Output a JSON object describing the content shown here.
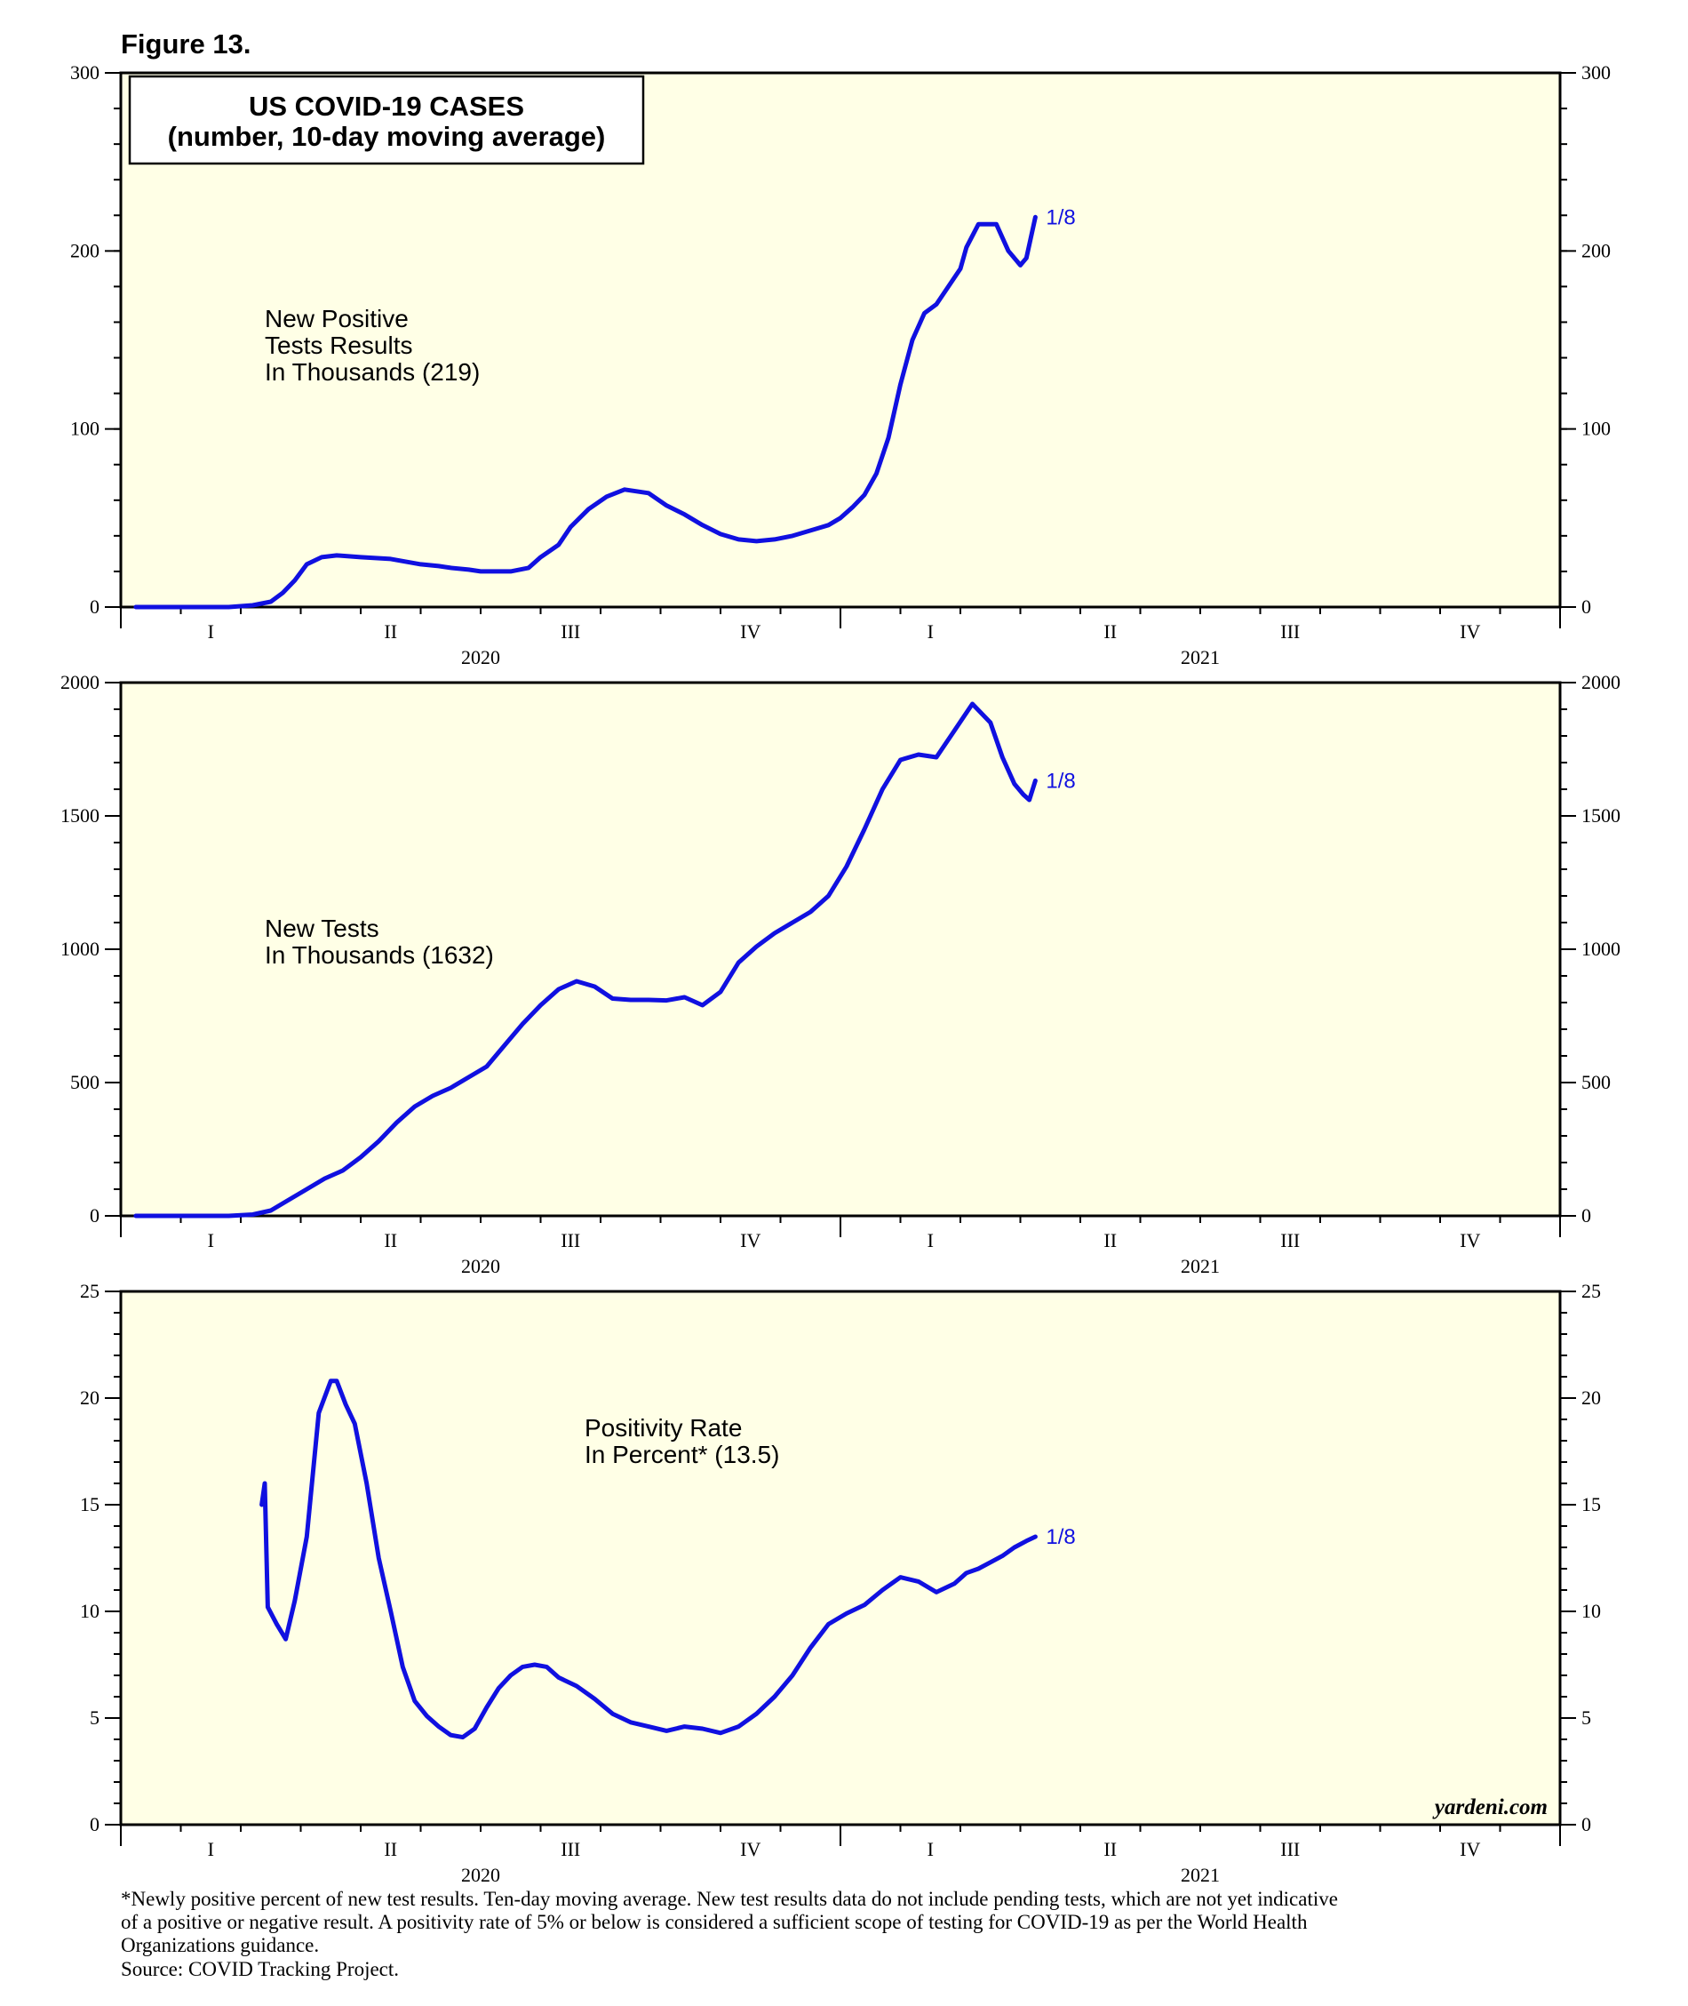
{
  "figure_label": "Figure 13.",
  "chart_title": {
    "line1": "US COVID-19 CASES",
    "line2": "(number, 10-day moving average)"
  },
  "quarters": [
    "I",
    "II",
    "III",
    "IV",
    "I",
    "II",
    "III",
    "IV"
  ],
  "years": [
    "2020",
    "2021"
  ],
  "brand": "yardeni.com",
  "footnote": [
    "*Newly positive percent of new test results. Ten-day moving average. New test results data do not include pending tests, which are not yet indicative",
    "of a positive or negative result. A positivity rate of 5% or below is considered a sufficient scope of testing for COVID-19 as per the World Health",
    "Organizations guidance.",
    "Source: COVID Tracking Project."
  ],
  "colors": {
    "line": "#1010e0",
    "plot_bg": "#ffffe6"
  },
  "chart_data": [
    {
      "type": "line",
      "id": "positive",
      "annotation": [
        "New Positive",
        "Tests Results",
        "In Thousands (219)"
      ],
      "end_label": "1/8",
      "ylim": [
        0,
        300
      ],
      "yticks": [
        0,
        100,
        200,
        300
      ],
      "y_minor_step": 20,
      "xlim": [
        0,
        24
      ],
      "series": [
        {
          "name": "New Positive Tests Results In Thousands",
          "x": [
            0.25,
            1.8,
            2.2,
            2.5,
            2.7,
            2.9,
            3.1,
            3.35,
            3.6,
            4.0,
            4.5,
            5.0,
            5.3,
            5.5,
            5.8,
            6.0,
            6.2,
            6.5,
            6.8,
            7.0,
            7.3,
            7.5,
            7.8,
            8.1,
            8.4,
            8.8,
            9.1,
            9.4,
            9.7,
            10.0,
            10.3,
            10.6,
            10.9,
            11.2,
            11.4,
            11.6,
            11.8,
            12.0,
            12.2,
            12.4,
            12.6,
            12.8,
            13.0,
            13.2,
            13.4,
            13.6,
            13.8,
            14.0,
            14.1,
            14.3,
            14.6,
            14.8,
            15.0,
            15.1,
            15.25
          ],
          "values": [
            0,
            0,
            1,
            3,
            8,
            15,
            24,
            28,
            29,
            28,
            27,
            24,
            23,
            22,
            21,
            20,
            20,
            20,
            22,
            28,
            35,
            45,
            55,
            62,
            66,
            64,
            57,
            52,
            46,
            41,
            38,
            37,
            38,
            40,
            42,
            44,
            46,
            50,
            56,
            63,
            75,
            95,
            125,
            150,
            165,
            170,
            180,
            190,
            202,
            215,
            215,
            200,
            192,
            196,
            219
          ]
        }
      ]
    },
    {
      "type": "line",
      "id": "tests",
      "annotation": [
        "New Tests",
        "In Thousands (1632)"
      ],
      "end_label": "1/8",
      "ylim": [
        0,
        2000
      ],
      "yticks": [
        0,
        500,
        1000,
        1500,
        2000
      ],
      "y_minor_step": 100,
      "xlim": [
        0,
        24
      ],
      "series": [
        {
          "name": "New Tests In Thousands",
          "x": [
            0.25,
            1.8,
            2.2,
            2.5,
            2.8,
            3.1,
            3.4,
            3.7,
            4.0,
            4.3,
            4.6,
            4.9,
            5.2,
            5.5,
            5.8,
            6.1,
            6.4,
            6.7,
            7.0,
            7.3,
            7.6,
            7.9,
            8.2,
            8.5,
            8.8,
            9.1,
            9.4,
            9.7,
            10.0,
            10.3,
            10.6,
            10.9,
            11.2,
            11.5,
            11.8,
            12.1,
            12.4,
            12.7,
            13.0,
            13.3,
            13.6,
            13.9,
            14.2,
            14.5,
            14.7,
            14.9,
            15.05,
            15.15,
            15.25
          ],
          "values": [
            0,
            0,
            5,
            20,
            60,
            100,
            140,
            170,
            220,
            280,
            350,
            410,
            450,
            480,
            520,
            560,
            640,
            720,
            790,
            850,
            880,
            860,
            815,
            810,
            810,
            808,
            820,
            790,
            840,
            950,
            1010,
            1060,
            1100,
            1140,
            1200,
            1310,
            1450,
            1600,
            1710,
            1730,
            1720,
            1820,
            1920,
            1850,
            1720,
            1620,
            1580,
            1560,
            1632
          ]
        }
      ]
    },
    {
      "type": "line",
      "id": "positivity",
      "annotation": [
        "Positivity Rate",
        "In Percent*  (13.5)"
      ],
      "end_label": "1/8",
      "ylim": [
        0,
        25
      ],
      "yticks": [
        0,
        5,
        10,
        15,
        20,
        25
      ],
      "y_minor_step": 1,
      "xlim": [
        0,
        24
      ],
      "series": [
        {
          "name": "Positivity Rate In Percent",
          "x": [
            2.35,
            2.4,
            2.45,
            2.6,
            2.75,
            2.9,
            3.1,
            3.3,
            3.5,
            3.6,
            3.75,
            3.9,
            4.1,
            4.3,
            4.5,
            4.7,
            4.9,
            5.1,
            5.3,
            5.5,
            5.7,
            5.9,
            6.1,
            6.3,
            6.5,
            6.7,
            6.9,
            7.1,
            7.3,
            7.6,
            7.9,
            8.2,
            8.5,
            8.8,
            9.1,
            9.4,
            9.7,
            10.0,
            10.3,
            10.6,
            10.9,
            11.2,
            11.5,
            11.8,
            12.1,
            12.4,
            12.7,
            13.0,
            13.3,
            13.6,
            13.9,
            14.1,
            14.3,
            14.5,
            14.7,
            14.9,
            15.1,
            15.25
          ],
          "values": [
            15,
            16,
            10.2,
            9.4,
            8.7,
            10.5,
            13.5,
            19.3,
            20.8,
            20.8,
            19.7,
            18.8,
            16,
            12.5,
            10,
            7.4,
            5.8,
            5.1,
            4.6,
            4.2,
            4.1,
            4.5,
            5.5,
            6.4,
            7.0,
            7.4,
            7.5,
            7.4,
            6.9,
            6.5,
            5.9,
            5.2,
            4.8,
            4.6,
            4.4,
            4.6,
            4.5,
            4.3,
            4.6,
            5.2,
            6.0,
            7.0,
            8.3,
            9.4,
            9.9,
            10.3,
            11.0,
            11.6,
            11.4,
            10.9,
            11.3,
            11.8,
            12.0,
            12.3,
            12.6,
            13.0,
            13.3,
            13.5
          ]
        }
      ]
    }
  ]
}
